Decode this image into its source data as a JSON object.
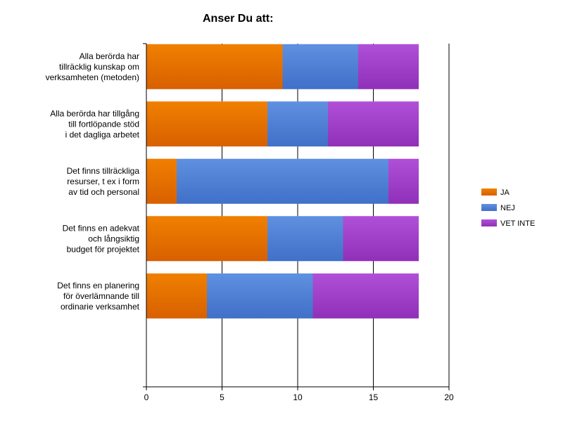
{
  "chart_data": {
    "type": "bar",
    "orientation": "horizontal",
    "stacked": true,
    "title": "Anser Du att:",
    "categories": [
      "Alla berörda har tillräcklig kunskap om verksamheten (metoden)",
      "Alla berörda har tillgång till fortlöpande stöd i det dagliga arbetet",
      "Det finns tillräckliga resurser, t ex i form av tid och personal",
      "Det finns en adekvat och långsiktig budget för projektet",
      "Det finns en planering för överlämnande till ordinarie verksamhet"
    ],
    "category_lines": [
      [
        "Alla berörda har",
        "tillräcklig kunskap om",
        "verksamheten (metoden)"
      ],
      [
        "Alla berörda har tillgång",
        "till fortlöpande stöd",
        "i det dagliga arbetet"
      ],
      [
        "Det finns tillräckliga",
        "resurser, t ex i form",
        "av tid och personal"
      ],
      [
        "Det finns en adekvat",
        "och långsiktig",
        "budget för projektet"
      ],
      [
        "Det finns en planering",
        "för överlämnande till",
        "ordinarie verksamhet"
      ]
    ],
    "series": [
      {
        "name": "JA",
        "values": [
          9,
          8,
          2,
          8,
          4
        ],
        "color": "#f08000",
        "color_dark": "#d86000"
      },
      {
        "name": "NEJ",
        "values": [
          5,
          4,
          14,
          5,
          7
        ],
        "color": "#6090e0",
        "color_dark": "#4070c8"
      },
      {
        "name": "VET INTE",
        "values": [
          4,
          6,
          2,
          5,
          7
        ],
        "color": "#b050d8",
        "color_dark": "#9030b8"
      }
    ],
    "xlim": [
      0,
      20
    ],
    "x_ticks": [
      "0",
      "5",
      "10",
      "15",
      "20"
    ],
    "grid": true,
    "legend_position": "right"
  }
}
